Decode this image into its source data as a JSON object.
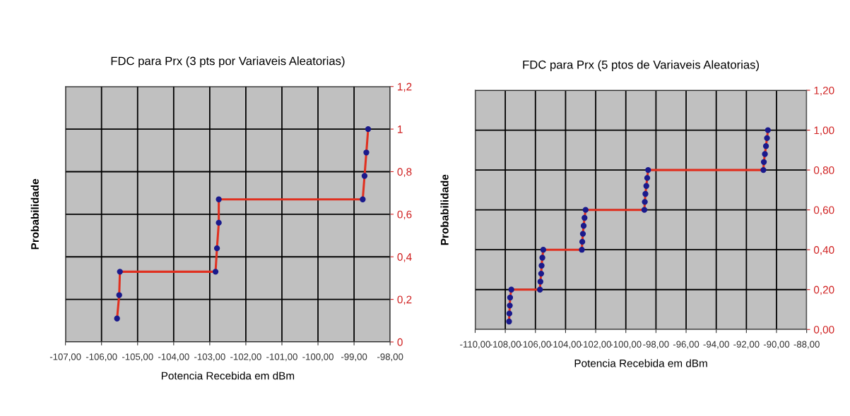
{
  "chart_data": [
    {
      "type": "line",
      "title": "FDC para Prx (3 pts por Variaveis Aleatorias)",
      "xlabel": "Potencia Recebida em dBm",
      "ylabel": "Probabilidade",
      "series": [
        {
          "marker": "none",
          "color": "#e03020",
          "x": [
            -105.57,
            -105.51,
            -105.49,
            -102.84,
            -102.8,
            -102.75,
            -102.75,
            -98.76,
            -98.71,
            -98.66,
            -98.61
          ],
          "values": [
            0.11,
            0.22,
            0.33,
            0.33,
            0.44,
            0.56,
            0.67,
            0.67,
            0.78,
            0.89,
            1.0
          ]
        },
        {
          "type": "scatter",
          "marker": "circle",
          "color": "#1a1a8c",
          "x": [
            -105.57,
            -105.51,
            -105.49,
            -102.84,
            -102.8,
            -102.75,
            -102.75,
            -98.76,
            -98.71,
            -98.66,
            -98.61
          ],
          "values": [
            0.11,
            0.22,
            0.33,
            0.33,
            0.44,
            0.56,
            0.67,
            0.67,
            0.78,
            0.89,
            1.0
          ]
        }
      ],
      "xlim": [
        -107,
        -98
      ],
      "xticks": [
        {
          "value": -107,
          "label": "-107,00"
        },
        {
          "value": -106,
          "label": "-106,00"
        },
        {
          "value": -105,
          "label": "-105,00"
        },
        {
          "value": -104,
          "label": "-104,00"
        },
        {
          "value": -103,
          "label": "-103,00"
        },
        {
          "value": -102,
          "label": "-102,00"
        },
        {
          "value": -101,
          "label": "-101,00"
        },
        {
          "value": -100,
          "label": "-100,00"
        },
        {
          "value": -99,
          "label": "-99,00"
        },
        {
          "value": -98,
          "label": "-98,00"
        }
      ],
      "ylim": [
        0,
        1.2
      ],
      "yticks": [
        0,
        {
          "value": 0.2,
          "label": "0,2"
        },
        {
          "value": 0.4,
          "label": "0,4"
        },
        {
          "value": 0.6,
          "label": "0,6"
        },
        {
          "value": 0.8,
          "label": "0,8"
        },
        1,
        {
          "value": 1.2,
          "label": "1,2"
        }
      ],
      "grid": true,
      "line_style": "solid"
    },
    {
      "type": "line",
      "title": "FDC para Prx (5 ptos de Variaveis Aleatorias)",
      "xlabel": "Potencia Recebida em dBm",
      "ylabel": "Probabilidade",
      "series": [
        {
          "marker": "none",
          "color": "#e03020",
          "x": [
            -107.75,
            -107.73,
            -107.7,
            -107.68,
            -107.6,
            -105.7,
            -105.67,
            -105.62,
            -105.59,
            -105.54,
            -105.48,
            -102.92,
            -102.89,
            -102.85,
            -102.8,
            -102.74,
            -102.67,
            -98.77,
            -98.74,
            -98.7,
            -98.64,
            -98.58,
            -98.52,
            -90.87,
            -90.84,
            -90.77,
            -90.7,
            -90.63,
            -90.57
          ],
          "values": [
            0.04,
            0.08,
            0.12,
            0.16,
            0.2,
            0.2,
            0.24,
            0.28,
            0.32,
            0.36,
            0.4,
            0.4,
            0.44,
            0.48,
            0.52,
            0.56,
            0.6,
            0.6,
            0.64,
            0.68,
            0.72,
            0.76,
            0.8,
            0.8,
            0.84,
            0.88,
            0.92,
            0.96,
            1.0
          ]
        },
        {
          "type": "scatter",
          "marker": "circle",
          "color": "#1a1a8c",
          "x": [
            -107.75,
            -107.73,
            -107.7,
            -107.68,
            -107.6,
            -105.7,
            -105.67,
            -105.62,
            -105.59,
            -105.54,
            -105.48,
            -102.92,
            -102.89,
            -102.85,
            -102.8,
            -102.74,
            -102.67,
            -98.77,
            -98.74,
            -98.7,
            -98.64,
            -98.58,
            -98.52,
            -90.87,
            -90.84,
            -90.77,
            -90.7,
            -90.63,
            -90.57
          ],
          "values": [
            0.04,
            0.08,
            0.12,
            0.16,
            0.2,
            0.2,
            0.24,
            0.28,
            0.32,
            0.36,
            0.4,
            0.4,
            0.44,
            0.48,
            0.52,
            0.56,
            0.6,
            0.6,
            0.64,
            0.68,
            0.72,
            0.76,
            0.8,
            0.8,
            0.84,
            0.88,
            0.92,
            0.96,
            1.0
          ]
        }
      ],
      "xlim": [
        -110,
        -88
      ],
      "xticks": [
        {
          "value": -110,
          "label": "-110,00"
        },
        {
          "value": -108,
          "label": "-108,00"
        },
        {
          "value": -106,
          "label": "-106,00"
        },
        {
          "value": -104,
          "label": "-104,00"
        },
        {
          "value": -102,
          "label": "-102,00"
        },
        {
          "value": -100,
          "label": "-100,00"
        },
        {
          "value": -98,
          "label": "-98,00"
        },
        {
          "value": -96,
          "label": "-96,00"
        },
        {
          "value": -94,
          "label": "-94,00"
        },
        {
          "value": -92,
          "label": "-92,00"
        },
        {
          "value": -90,
          "label": "-90,00"
        },
        {
          "value": -88,
          "label": "-88,00"
        }
      ],
      "ylim": [
        0,
        1.2
      ],
      "yticks": [
        {
          "value": 0,
          "label": "0,00"
        },
        {
          "value": 0.2,
          "label": "0,20"
        },
        {
          "value": 0.4,
          "label": "0,40"
        },
        {
          "value": 0.6,
          "label": "0,60"
        },
        {
          "value": 0.8,
          "label": "0,80"
        },
        {
          "value": 1.0,
          "label": "1,00"
        },
        {
          "value": 1.2,
          "label": "1,20"
        }
      ],
      "grid": true,
      "line_style": "solid"
    }
  ]
}
